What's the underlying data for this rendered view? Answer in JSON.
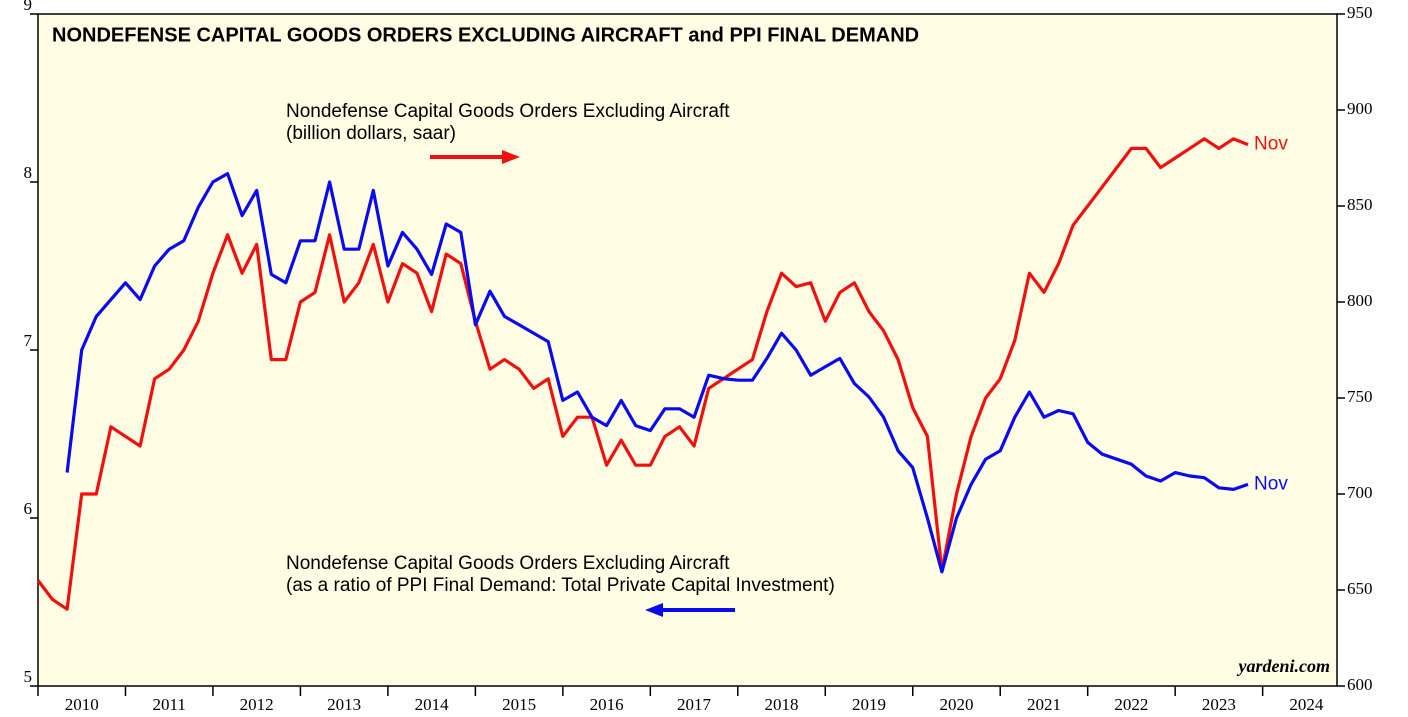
{
  "chart_data": {
    "type": "line",
    "title": "NONDEFENSE CAPITAL GOODS ORDERS EXCLUDING AIRCRAFT and PPI FINAL DEMAND",
    "x": [
      2010,
      2010.167,
      2010.333,
      2010.5,
      2010.667,
      2010.833,
      2011,
      2011.167,
      2011.333,
      2011.5,
      2011.667,
      2011.833,
      2012,
      2012.167,
      2012.333,
      2012.5,
      2012.667,
      2012.833,
      2013,
      2013.167,
      2013.333,
      2013.5,
      2013.667,
      2013.833,
      2014,
      2014.167,
      2014.333,
      2014.5,
      2014.667,
      2014.833,
      2015,
      2015.167,
      2015.333,
      2015.5,
      2015.667,
      2015.833,
      2016,
      2016.167,
      2016.333,
      2016.5,
      2016.667,
      2016.833,
      2017,
      2017.167,
      2017.333,
      2017.5,
      2017.667,
      2017.833,
      2018,
      2018.167,
      2018.333,
      2018.5,
      2018.667,
      2018.833,
      2019,
      2019.167,
      2019.333,
      2019.5,
      2019.667,
      2019.833,
      2020,
      2020.167,
      2020.333,
      2020.5,
      2020.667,
      2020.833,
      2021,
      2021.167,
      2021.333,
      2021.5,
      2021.667,
      2021.833,
      2022,
      2022.167,
      2022.333,
      2022.5,
      2022.667,
      2022.833,
      2023,
      2023.167,
      2023.333,
      2023.5,
      2023.667,
      2023.833
    ],
    "series": [
      {
        "name": [
          "Nondefense Capital Goods Orders Excluding Aircraft",
          "(billion dollars, saar)"
        ],
        "color": "#f01010",
        "axis": "y2",
        "end_label": "Nov",
        "values": [
          655,
          645,
          640,
          700,
          700,
          735,
          730,
          725,
          760,
          765,
          775,
          790,
          815,
          835,
          815,
          830,
          770,
          770,
          800,
          805,
          835,
          800,
          810,
          830,
          800,
          820,
          815,
          795,
          825,
          820,
          790,
          765,
          770,
          765,
          755,
          760,
          730,
          740,
          740,
          715,
          728,
          715,
          715,
          730,
          735,
          725,
          755,
          760,
          765,
          770,
          795,
          815,
          808,
          810,
          790,
          805,
          810,
          795,
          785,
          770,
          745,
          730,
          660,
          700,
          730,
          750,
          760,
          780,
          815,
          805,
          820,
          840,
          850,
          860,
          870,
          880,
          880,
          870,
          875,
          880,
          885,
          880,
          885,
          882
        ]
      },
      {
        "name": [
          "Nondefense Capital Goods Orders Excluding Aircraft",
          "(as a ratio of PPI Final Demand: Total Private Capital Investment)"
        ],
        "color": "#0a0aee",
        "end_label": "Nov",
        "values": [
          null,
          null,
          6.27,
          7.0,
          7.2,
          7.3,
          7.4,
          7.3,
          7.5,
          7.6,
          7.65,
          7.85,
          8.0,
          8.05,
          7.8,
          7.95,
          7.45,
          7.4,
          7.65,
          7.65,
          8.0,
          7.6,
          7.6,
          7.95,
          7.5,
          7.7,
          7.6,
          7.45,
          7.75,
          7.7,
          7.15,
          7.35,
          7.2,
          7.15,
          7.1,
          7.05,
          6.7,
          6.75,
          6.6,
          6.55,
          6.7,
          6.55,
          6.52,
          6.65,
          6.65,
          6.6,
          6.85,
          6.83,
          6.82,
          6.82,
          6.95,
          7.1,
          7.0,
          6.85,
          6.9,
          6.95,
          6.8,
          6.72,
          6.6,
          6.4,
          6.3,
          6.0,
          5.68,
          6.0,
          6.2,
          6.35,
          6.4,
          6.6,
          6.75,
          6.6,
          6.64,
          6.62,
          6.45,
          6.38,
          6.35,
          6.32,
          6.25,
          6.22,
          6.27,
          6.25,
          6.24,
          6.18,
          6.17,
          6.2
        ]
      }
    ],
    "xlim": [
      2010,
      2024.85
    ],
    "xticks": [
      2010,
      2011,
      2012,
      2013,
      2014,
      2015,
      2016,
      2017,
      2018,
      2019,
      2020,
      2021,
      2022,
      2023,
      2024
    ],
    "ylim": [
      5,
      9
    ],
    "yticks": [
      5,
      6,
      7,
      8,
      9
    ],
    "y2lim": [
      600,
      950
    ],
    "y2ticks": [
      600,
      650,
      700,
      750,
      800,
      850,
      900,
      950
    ],
    "source": "yardeni.com"
  }
}
